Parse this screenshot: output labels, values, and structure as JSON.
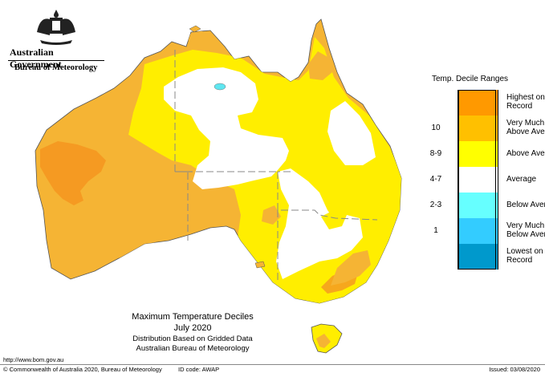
{
  "header": {
    "government": "Australian Government",
    "bureau": "Bureau of Meteorology"
  },
  "legend": {
    "title": "Temp. Decile Ranges",
    "items": [
      {
        "code": "",
        "label": "Highest on Record",
        "color": "#ff9900"
      },
      {
        "code": "10",
        "label": "Very Much Above Average",
        "color": "#ffc000"
      },
      {
        "code": "8-9",
        "label": "Above Average",
        "color": "#ffff00"
      },
      {
        "code": "4-7",
        "label": "Average",
        "color": "#ffffff"
      },
      {
        "code": "2-3",
        "label": "Below Average",
        "color": "#66ffff"
      },
      {
        "code": "1",
        "label": "Very Much Below Average",
        "color": "#33ccff"
      },
      {
        "code": "",
        "label": "Lowest on Record",
        "color": "#0099cc"
      }
    ]
  },
  "caption": {
    "title": "Maximum Temperature Deciles",
    "month": "July 2020",
    "line1": "Distribution Based on Gridded Data",
    "line2": "Australian Bureau of Meteorology"
  },
  "footer": {
    "url": "http://www.bom.gov.au",
    "copyright": "© Commonwealth of Australia 2020, Bureau of Meteorology",
    "id_code": "ID code: AWAP",
    "issued": "Issued: 03/08/2020"
  }
}
